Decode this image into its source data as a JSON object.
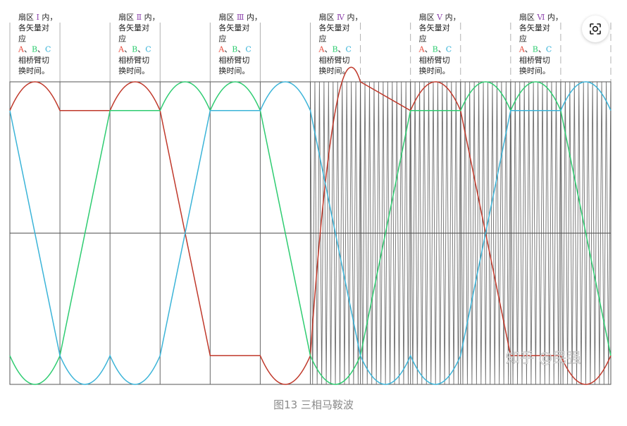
{
  "chart_data": {
    "type": "line",
    "title": "",
    "caption": "图13 三相马鞍波",
    "watermark": "知乎 @民强",
    "sectors": [
      {
        "name": "扇区",
        "roman": "Ⅰ",
        "roman_color": "#8e44ad",
        "suffix": "内，",
        "line2": "各矢量对",
        "line3": "应",
        "phases": [
          "A",
          "B",
          "C"
        ],
        "line5": "相桥臂切",
        "line6": "换时间。"
      },
      {
        "name": "扇区",
        "roman": "Ⅱ",
        "roman_color": "#8e44ad",
        "suffix": "内，",
        "line2": "各矢量对",
        "line3": "应",
        "phases": [
          "A",
          "B",
          "C"
        ],
        "line5": "相桥臂切",
        "line6": "换时间。"
      },
      {
        "name": "扇区",
        "roman": "Ⅲ",
        "roman_color": "#8e44ad",
        "suffix": "内，",
        "line2": "各矢量对",
        "line3": "应",
        "phases": [
          "A",
          "B",
          "C"
        ],
        "line5": "相桥臂切",
        "line6": "换时间。"
      },
      {
        "name": "扇区",
        "roman": "Ⅳ",
        "roman_color": "#8e44ad",
        "suffix": "内，",
        "line2": "各矢量对",
        "line3": "应",
        "phases": [
          "A",
          "B",
          "C"
        ],
        "line5": "相桥臂切",
        "line6": "换时间。"
      },
      {
        "name": "扇区",
        "roman": "Ⅴ",
        "roman_color": "#8e44ad",
        "suffix": "内，",
        "line2": "各矢量对",
        "line3": "应",
        "phases": [
          "A",
          "B",
          "C"
        ],
        "line5": "相桥臂切",
        "line6": "换时间。"
      },
      {
        "name": "扇区",
        "roman": "Ⅵ",
        "roman_color": "#8e44ad",
        "suffix": "内，",
        "line2": "各矢量对",
        "line3": "应",
        "phases": [
          "A",
          "B",
          "C"
        ],
        "line5": "相桥臂切",
        "line6": "换时间。"
      }
    ],
    "phase_colors": {
      "A": "#e74c3c",
      "B": "#2ecc71",
      "C": "#3bb4d8"
    },
    "x_unit": "sector",
    "xlim": [
      0,
      12
    ],
    "ylim": [
      -1,
      1
    ],
    "series": [
      {
        "name": "A",
        "color": "#c0392b",
        "x": [
          0,
          0.5,
          1,
          2,
          2.5,
          3,
          4,
          5,
          5.5,
          6,
          6.5,
          7,
          8,
          8.5,
          9,
          10,
          11,
          11.5,
          12
        ],
        "y": [
          0.81,
          1,
          0.81,
          0.81,
          1,
          0.81,
          -0.81,
          -0.81,
          -1,
          -0.81,
          0.81,
          1,
          0.81,
          1,
          0.81,
          -0.81,
          -0.81,
          -1,
          -0.81
        ]
      },
      {
        "name": "B",
        "color": "#2ecc71",
        "x": [
          0,
          0.5,
          1,
          2,
          3,
          3.5,
          4,
          4.5,
          5,
          6,
          6.5,
          7,
          8,
          9,
          9.5,
          10,
          10.5,
          11,
          12
        ],
        "y": [
          -0.81,
          -1,
          -0.81,
          0.81,
          0.81,
          1,
          0.81,
          1,
          0.81,
          -0.81,
          -1,
          -0.81,
          0.81,
          0.81,
          1,
          0.81,
          1,
          0.81,
          -0.81
        ]
      },
      {
        "name": "C",
        "color": "#3bb4d8",
        "x": [
          0,
          1,
          1.5,
          2,
          2.5,
          3,
          4,
          5,
          5.5,
          6,
          7,
          7.5,
          8,
          8.5,
          9,
          10,
          11,
          11.5,
          12
        ],
        "y": [
          0.81,
          -0.81,
          -1,
          -0.81,
          -1,
          -0.81,
          0.81,
          0.81,
          1,
          0.81,
          -0.81,
          -1,
          -0.81,
          -1,
          -0.81,
          0.81,
          0.81,
          1,
          0.81
        ]
      }
    ],
    "carrier": {
      "type": "triangle",
      "x_start": 6,
      "x_end": 12,
      "periods": 66,
      "color": "#555555"
    },
    "grid": true,
    "zero_line": true
  },
  "ui": {
    "scan_icon": "qr-scan-icon"
  }
}
